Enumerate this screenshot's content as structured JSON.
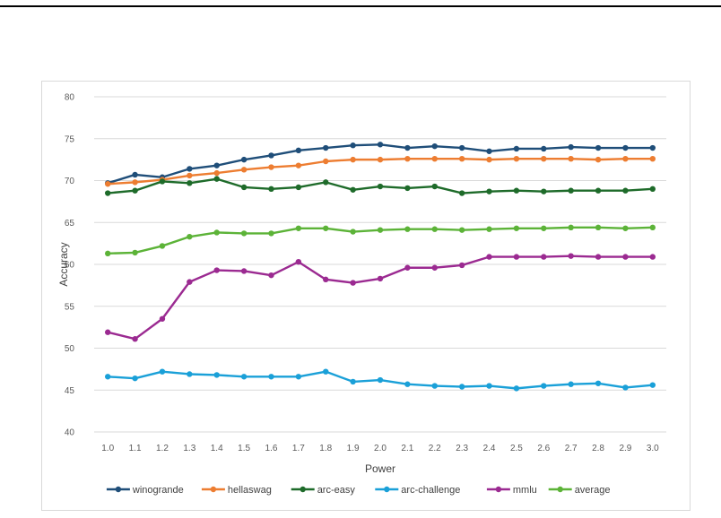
{
  "chart_data": {
    "type": "line",
    "title": "",
    "xlabel": "Power",
    "ylabel": "Accuracy",
    "x": [
      "1.0",
      "1.1",
      "1.2",
      "1.3",
      "1.4",
      "1.5",
      "1.6",
      "1.7",
      "1.8",
      "1.9",
      "2.0",
      "2.1",
      "2.2",
      "2.3",
      "2.4",
      "2.5",
      "2.6",
      "2.7",
      "2.8",
      "2.9",
      "3.0"
    ],
    "ylim": [
      40,
      80
    ],
    "yticks": [
      40,
      45,
      50,
      55,
      60,
      65,
      70,
      75,
      80
    ],
    "grid": true,
    "legend_position": "bottom",
    "series": [
      {
        "name": "winogrande",
        "color": "#1f4e79",
        "values": [
          69.7,
          70.7,
          70.4,
          71.4,
          71.8,
          72.5,
          73.0,
          73.6,
          73.9,
          74.2,
          74.3,
          73.9,
          74.1,
          73.9,
          73.5,
          73.8,
          73.8,
          74.0,
          73.9,
          73.9,
          73.9
        ]
      },
      {
        "name": "hellaswag",
        "color": "#ed7d31",
        "values": [
          69.6,
          69.8,
          70.1,
          70.6,
          70.9,
          71.3,
          71.6,
          71.8,
          72.3,
          72.5,
          72.5,
          72.6,
          72.6,
          72.6,
          72.5,
          72.6,
          72.6,
          72.6,
          72.5,
          72.6,
          72.6
        ]
      },
      {
        "name": "arc-easy",
        "color": "#1e6b2a",
        "values": [
          68.5,
          68.8,
          69.9,
          69.7,
          70.2,
          69.2,
          69.0,
          69.2,
          69.8,
          68.9,
          69.3,
          69.1,
          69.3,
          68.5,
          68.7,
          68.8,
          68.7,
          68.8,
          68.8,
          68.8,
          69.0
        ]
      },
      {
        "name": "arc-challenge",
        "color": "#1aa0d8",
        "values": [
          46.6,
          46.4,
          47.2,
          46.9,
          46.8,
          46.6,
          46.6,
          46.6,
          47.2,
          46.0,
          46.2,
          45.7,
          45.5,
          45.4,
          45.5,
          45.2,
          45.5,
          45.7,
          45.8,
          45.3,
          45.6
        ]
      },
      {
        "name": "mmlu",
        "color": "#9b2a91",
        "values": [
          51.9,
          51.1,
          53.5,
          57.9,
          59.3,
          59.2,
          58.7,
          60.3,
          58.2,
          57.8,
          58.3,
          59.6,
          59.6,
          59.9,
          60.9,
          60.9,
          60.9,
          61.0,
          60.9,
          60.9,
          60.9
        ]
      },
      {
        "name": "average",
        "color": "#5cb338",
        "values": [
          61.3,
          61.4,
          62.2,
          63.3,
          63.8,
          63.7,
          63.7,
          64.3,
          64.3,
          63.9,
          64.1,
          64.2,
          64.2,
          64.1,
          64.2,
          64.3,
          64.3,
          64.4,
          64.4,
          64.3,
          64.4
        ]
      }
    ]
  }
}
